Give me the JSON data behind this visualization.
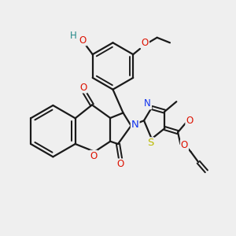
{
  "bg_color": "#efefef",
  "bond_color": "#1a1a1a",
  "bond_lw": 1.6,
  "atom_colors": {
    "O": "#dd1100",
    "N": "#1133ee",
    "S": "#bbbb00",
    "H": "#228888",
    "C": "#1a1a1a"
  },
  "font_size": 8.5,
  "fig_size": [
    3.0,
    3.0
  ],
  "dpi": 100
}
